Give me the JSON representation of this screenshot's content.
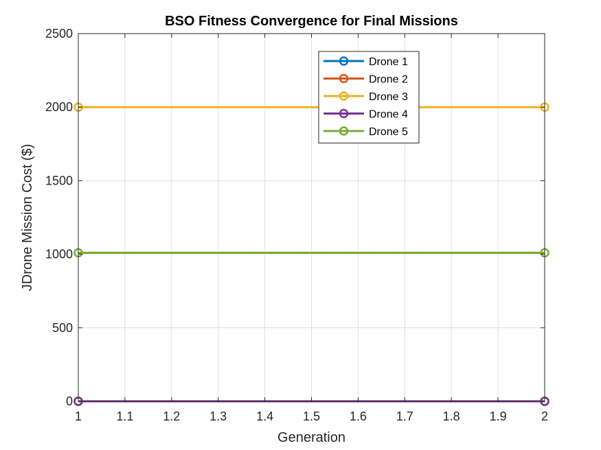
{
  "chart_data": {
    "type": "line",
    "title": "BSO Fitness Convergence for Final Missions",
    "xlabel": "Generation",
    "ylabel": "JDrone Mission Cost ($)",
    "xlim": [
      1,
      2
    ],
    "ylim": [
      0,
      2500
    ],
    "xticks": [
      1,
      1.1,
      1.2,
      1.3,
      1.4,
      1.5,
      1.6,
      1.7,
      1.8,
      1.9,
      2
    ],
    "xtick_labels": [
      "1",
      "1.1",
      "1.2",
      "1.3",
      "1.4",
      "1.5",
      "1.6",
      "1.7",
      "1.8",
      "1.9",
      "2"
    ],
    "yticks": [
      0,
      500,
      1000,
      1500,
      2000,
      2500
    ],
    "ytick_labels": [
      "0",
      "500",
      "1000",
      "1500",
      "2000",
      "2500"
    ],
    "grid": true,
    "legend_position": "top-center",
    "x": [
      1,
      2
    ],
    "series": [
      {
        "name": "Drone 1",
        "values": [
          0,
          0
        ],
        "color": "#0072BD"
      },
      {
        "name": "Drone 2",
        "values": [
          0,
          0
        ],
        "color": "#D95319"
      },
      {
        "name": "Drone 3",
        "values": [
          2000,
          2000
        ],
        "color": "#EDB120"
      },
      {
        "name": "Drone 4",
        "values": [
          0,
          0
        ],
        "color": "#7E2F8E"
      },
      {
        "name": "Drone 5",
        "values": [
          1010,
          1010
        ],
        "color": "#77AC30"
      }
    ]
  }
}
